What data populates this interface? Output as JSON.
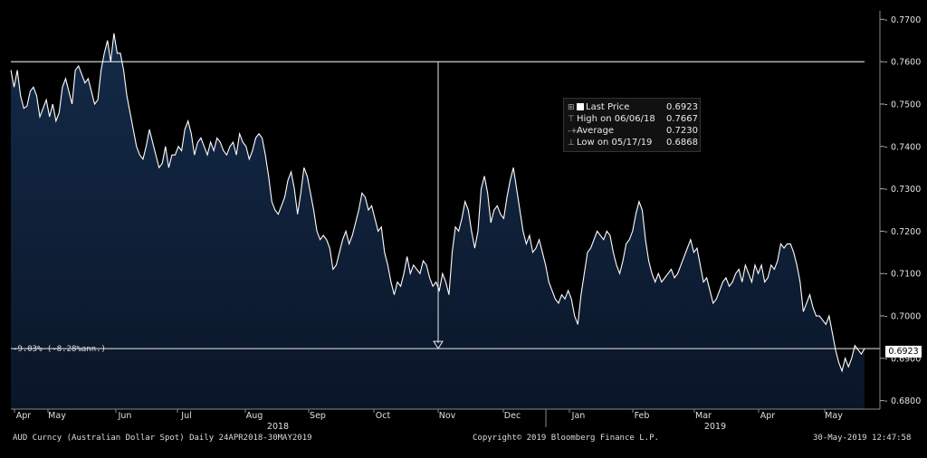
{
  "chart_data": {
    "type": "area",
    "security": "AUD Curncy (Australian Dollar Spot)",
    "period": "Daily 24APR2018-30MAY2019",
    "copyright": "Copyright© 2019 Bloomberg Finance L.P.",
    "timestamp": "30-May-2019 12:47:58",
    "return_label": "-9.03% (-8.28%ann.)",
    "last_price_tag": "0.6923",
    "ylim": [
      0.678,
      0.772
    ],
    "yticks": [
      "0.7700",
      "0.7600",
      "0.7500",
      "0.7400",
      "0.7300",
      "0.7200",
      "0.7100",
      "0.7000",
      "0.6900",
      "0.6800"
    ],
    "month_labels": [
      "Apr",
      "May",
      "Jun",
      "Jul",
      "Aug",
      "Sep",
      "Oct",
      "Nov",
      "Dec",
      "Jan",
      "Feb",
      "Mar",
      "Apr",
      "May"
    ],
    "year_labels": [
      "2018",
      "2019"
    ],
    "legend": [
      {
        "label": "Last Price",
        "value": "0.6923"
      },
      {
        "label": "High on 06/06/18",
        "value": "0.7667"
      },
      {
        "label": "Average",
        "value": "0.7230"
      },
      {
        "label": "Low on 05/17/19",
        "value": "0.6868"
      }
    ],
    "reference_line": 0.76,
    "last_line": 0.6923,
    "series": [
      {
        "name": "Last Price",
        "values": [
          0.758,
          0.754,
          0.758,
          0.752,
          0.749,
          0.7495,
          0.753,
          0.754,
          0.752,
          0.747,
          0.749,
          0.751,
          0.747,
          0.75,
          0.746,
          0.748,
          0.754,
          0.756,
          0.753,
          0.75,
          0.758,
          0.759,
          0.757,
          0.755,
          0.756,
          0.753,
          0.75,
          0.751,
          0.758,
          0.762,
          0.765,
          0.76,
          0.7667,
          0.762,
          0.762,
          0.758,
          0.752,
          0.748,
          0.744,
          0.74,
          0.738,
          0.737,
          0.74,
          0.744,
          0.741,
          0.738,
          0.735,
          0.736,
          0.74,
          0.735,
          0.738,
          0.738,
          0.74,
          0.739,
          0.744,
          0.746,
          0.743,
          0.738,
          0.741,
          0.742,
          0.74,
          0.738,
          0.741,
          0.739,
          0.742,
          0.741,
          0.739,
          0.738,
          0.74,
          0.741,
          0.738,
          0.743,
          0.741,
          0.74,
          0.737,
          0.739,
          0.742,
          0.743,
          0.742,
          0.738,
          0.733,
          0.727,
          0.725,
          0.724,
          0.726,
          0.728,
          0.732,
          0.734,
          0.73,
          0.724,
          0.729,
          0.735,
          0.733,
          0.729,
          0.725,
          0.72,
          0.718,
          0.719,
          0.718,
          0.716,
          0.711,
          0.712,
          0.715,
          0.718,
          0.72,
          0.717,
          0.719,
          0.722,
          0.725,
          0.729,
          0.728,
          0.725,
          0.726,
          0.723,
          0.72,
          0.721,
          0.715,
          0.712,
          0.708,
          0.705,
          0.708,
          0.707,
          0.71,
          0.714,
          0.71,
          0.712,
          0.711,
          0.71,
          0.713,
          0.712,
          0.709,
          0.707,
          0.708,
          0.706,
          0.71,
          0.708,
          0.705,
          0.715,
          0.721,
          0.72,
          0.723,
          0.727,
          0.725,
          0.72,
          0.716,
          0.72,
          0.73,
          0.733,
          0.729,
          0.722,
          0.725,
          0.726,
          0.724,
          0.723,
          0.728,
          0.732,
          0.735,
          0.73,
          0.725,
          0.72,
          0.717,
          0.719,
          0.715,
          0.716,
          0.718,
          0.715,
          0.712,
          0.708,
          0.706,
          0.704,
          0.703,
          0.705,
          0.704,
          0.706,
          0.704,
          0.7,
          0.698,
          0.705,
          0.71,
          0.715,
          0.716,
          0.718,
          0.72,
          0.719,
          0.718,
          0.72,
          0.719,
          0.715,
          0.712,
          0.71,
          0.713,
          0.717,
          0.718,
          0.72,
          0.724,
          0.727,
          0.725,
          0.718,
          0.713,
          0.71,
          0.708,
          0.71,
          0.708,
          0.709,
          0.71,
          0.711,
          0.709,
          0.71,
          0.712,
          0.714,
          0.716,
          0.718,
          0.715,
          0.716,
          0.712,
          0.708,
          0.709,
          0.706,
          0.703,
          0.704,
          0.706,
          0.708,
          0.709,
          0.707,
          0.708,
          0.71,
          0.711,
          0.708,
          0.712,
          0.71,
          0.708,
          0.712,
          0.71,
          0.712,
          0.708,
          0.709,
          0.712,
          0.711,
          0.713,
          0.717,
          0.716,
          0.717,
          0.717,
          0.715,
          0.712,
          0.708,
          0.701,
          0.703,
          0.705,
          0.702,
          0.7,
          0.7,
          0.699,
          0.698,
          0.7,
          0.696,
          0.692,
          0.689,
          0.687,
          0.69,
          0.688,
          0.69,
          0.693,
          0.692,
          0.691,
          0.6923
        ]
      }
    ]
  }
}
